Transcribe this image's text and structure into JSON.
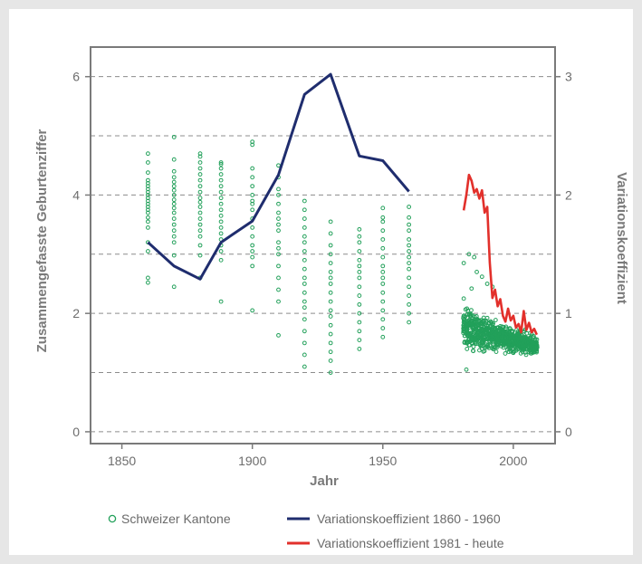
{
  "chart_data": {
    "type": "scatter+line",
    "xlabel": "Jahr",
    "ylabel_left": "Zusammengefasste Geburtenziffer",
    "ylabel_right": "Variationskoeffizient",
    "xlim": [
      1838,
      2016
    ],
    "ylim_left": [
      -0.2,
      6.5
    ],
    "ylim_right": [
      -0.1,
      3.25
    ],
    "x_ticks": [
      1850,
      1900,
      1950,
      2000
    ],
    "y_ticks_left": [
      0,
      2,
      4,
      6
    ],
    "y_ticks_right": [
      0,
      1,
      2,
      3
    ],
    "grid": "horizontal dashed",
    "legend": [
      {
        "label": "Schweizer Kantone",
        "color": "#22a05a",
        "marker": "circle"
      },
      {
        "label": "Variationskoeffizient 1860 - 1960",
        "color": "#1f2d6e",
        "marker": "line"
      },
      {
        "label": "Variationskoeffizient 1981 - heute",
        "color": "#e2302b",
        "marker": "line"
      }
    ],
    "series": [
      {
        "name": "Variationskoeffizient 1860 - 1960",
        "axis": "right",
        "color": "#1f2d6e",
        "x": [
          1860,
          1870,
          1880,
          1888,
          1900,
          1910,
          1920,
          1930,
          1941,
          1950,
          1960
        ],
        "y": [
          1.6,
          1.4,
          1.29,
          1.6,
          1.78,
          2.17,
          2.85,
          3.02,
          2.33,
          2.29,
          2.03
        ]
      },
      {
        "name": "Variationskoeffizient 1981 - heute",
        "axis": "right",
        "color": "#e2302b",
        "x": [
          1981,
          1982,
          1983,
          1984,
          1985,
          1986,
          1987,
          1988,
          1989,
          1990,
          1991,
          1992,
          1993,
          1994,
          1995,
          1996,
          1997,
          1998,
          1999,
          2000,
          2001,
          2002,
          2003,
          2004,
          2005,
          2006,
          2007,
          2008,
          2009
        ],
        "y": [
          1.87,
          2.0,
          2.17,
          2.12,
          2.02,
          2.05,
          1.97,
          2.04,
          1.85,
          1.9,
          1.43,
          1.13,
          1.2,
          1.06,
          1.12,
          0.98,
          0.93,
          1.04,
          0.94,
          0.98,
          0.88,
          0.91,
          0.84,
          1.02,
          0.86,
          0.92,
          0.84,
          0.87,
          0.82
        ]
      }
    ],
    "scatter": {
      "name": "Schweizer Kantone",
      "axis": "left",
      "color": "#22a05a",
      "census": {
        "x": [
          1860,
          1870,
          1880,
          1888,
          1900,
          1910,
          1920,
          1930,
          1941,
          1950,
          1960
        ],
        "y": [
          [
            2.52,
            2.6,
            3.05,
            3.2,
            3.45,
            3.55,
            3.62,
            3.7,
            3.75,
            3.8,
            3.85,
            3.9,
            3.95,
            4.0,
            4.05,
            4.1,
            4.15,
            4.2,
            4.25,
            4.38,
            4.55,
            4.7
          ],
          [
            2.45,
            2.98,
            3.2,
            3.3,
            3.4,
            3.5,
            3.6,
            3.7,
            3.78,
            3.85,
            3.92,
            4.0,
            4.08,
            4.15,
            4.22,
            4.3,
            4.4,
            4.6,
            4.98
          ],
          [
            2.6,
            2.98,
            3.15,
            3.3,
            3.4,
            3.5,
            3.6,
            3.7,
            3.8,
            3.88,
            3.95,
            4.05,
            4.15,
            4.25,
            4.35,
            4.45,
            4.55,
            4.65,
            4.7
          ],
          [
            2.2,
            2.9,
            3.05,
            3.15,
            3.25,
            3.35,
            3.45,
            3.55,
            3.65,
            3.75,
            3.85,
            3.95,
            4.05,
            4.15,
            4.25,
            4.35,
            4.45,
            4.52,
            4.55
          ],
          [
            2.05,
            2.8,
            2.95,
            3.05,
            3.15,
            3.3,
            3.45,
            3.6,
            3.75,
            3.85,
            3.9,
            4.0,
            4.15,
            4.3,
            4.45,
            4.85,
            4.9
          ],
          [
            1.63,
            2.2,
            2.4,
            2.6,
            2.8,
            3.0,
            3.1,
            3.2,
            3.4,
            3.5,
            3.6,
            3.7,
            3.85,
            4.0,
            4.1,
            4.3,
            4.5
          ],
          [
            1.1,
            1.3,
            1.5,
            1.7,
            1.9,
            2.1,
            2.2,
            2.35,
            2.5,
            2.6,
            2.75,
            2.9,
            3.05,
            3.2,
            3.3,
            3.45,
            3.6,
            3.75,
            3.9
          ],
          [
            1.0,
            1.2,
            1.35,
            1.5,
            1.65,
            1.8,
            1.95,
            2.05,
            2.2,
            2.35,
            2.5,
            2.6,
            2.7,
            2.85,
            3.0,
            3.15,
            3.35,
            3.55
          ],
          [
            1.4,
            1.55,
            1.7,
            1.85,
            2.0,
            2.15,
            2.3,
            2.45,
            2.6,
            2.7,
            2.8,
            2.9,
            3.05,
            3.2,
            3.3,
            3.42
          ],
          [
            1.6,
            1.75,
            1.9,
            2.05,
            2.2,
            2.35,
            2.5,
            2.6,
            2.7,
            2.8,
            2.95,
            3.1,
            3.25,
            3.4,
            3.55,
            3.62,
            3.78
          ],
          [
            1.85,
            2.0,
            2.15,
            2.3,
            2.45,
            2.6,
            2.75,
            2.85,
            2.95,
            3.05,
            3.15,
            3.25,
            3.4,
            3.5,
            3.62,
            3.8
          ]
        ]
      },
      "annual": {
        "x_range": [
          1981,
          2009
        ],
        "y_range_typical": [
          1.2,
          2.1
        ],
        "y_range_outliers": [
          1.0,
          3.0
        ]
      }
    }
  }
}
